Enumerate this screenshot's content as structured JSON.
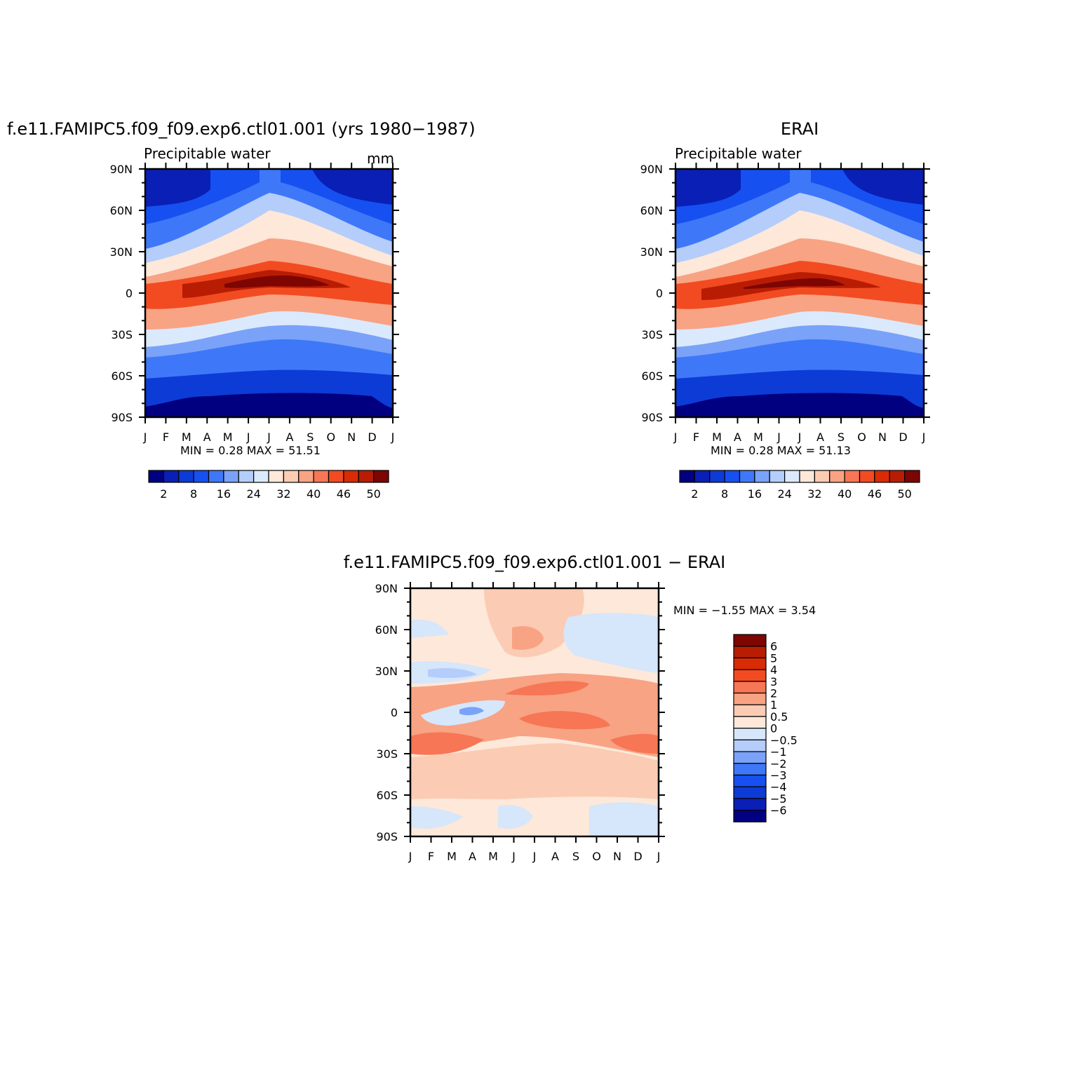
{
  "chart_data": [
    {
      "type": "heatmap",
      "title": "f.e11.FAMIPC5.f09_f09.exp6.ctl01.001 (yrs 1980−1987)",
      "subtitle": "Precipitable water",
      "units": "mm",
      "x_tick_labels": [
        "J",
        "F",
        "M",
        "A",
        "M",
        "J",
        "J",
        "A",
        "S",
        "O",
        "N",
        "D",
        "J"
      ],
      "y_tick_labels": [
        "90N",
        "60N",
        "30N",
        "0",
        "30S",
        "60S",
        "90S"
      ],
      "y_values": [
        90,
        60,
        30,
        0,
        -30,
        -60,
        -90
      ],
      "min_label": "MIN =",
      "max_label": "MAX =",
      "min": "0.28",
      "max": "51.51",
      "colorbar_levels": [
        2,
        8,
        16,
        24,
        32,
        40,
        46,
        50
      ],
      "colorbar_labels": [
        "2",
        "8",
        "16",
        "24",
        "32",
        "40",
        "46",
        "50"
      ],
      "colors": [
        "#000080",
        "#0a1fb5",
        "#0d3bd6",
        "#1650f0",
        "#3e78f8",
        "#7aa2f8",
        "#b4cdfb",
        "#dbe9fc",
        "#fde8d9",
        "#fbcbb3",
        "#f8a383",
        "#f77655",
        "#f24b21",
        "#d92b06",
        "#b81d04",
        "#7d0502"
      ]
    },
    {
      "type": "heatmap",
      "title": "ERAI",
      "subtitle": "Precipitable water",
      "x_tick_labels": [
        "J",
        "F",
        "M",
        "A",
        "M",
        "J",
        "J",
        "A",
        "S",
        "O",
        "N",
        "D",
        "J"
      ],
      "y_tick_labels": [
        "90N",
        "60N",
        "30N",
        "0",
        "30S",
        "60S",
        "90S"
      ],
      "y_values": [
        90,
        60,
        30,
        0,
        -30,
        -60,
        -90
      ],
      "min_label": "MIN =",
      "max_label": "MAX =",
      "min": "0.28",
      "max": "51.13",
      "colorbar_levels": [
        2,
        8,
        16,
        24,
        32,
        40,
        46,
        50
      ],
      "colorbar_labels": [
        "2",
        "8",
        "16",
        "24",
        "32",
        "40",
        "46",
        "50"
      ],
      "colors": [
        "#000080",
        "#0a1fb5",
        "#0d3bd6",
        "#1650f0",
        "#3e78f8",
        "#7aa2f8",
        "#b4cdfb",
        "#dbe9fc",
        "#fde8d9",
        "#fbcbb3",
        "#f8a383",
        "#f77655",
        "#f24b21",
        "#d92b06",
        "#b81d04",
        "#7d0502"
      ]
    },
    {
      "type": "heatmap",
      "title": "f.e11.FAMIPC5.f09_f09.exp6.ctl01.001 − ERAI",
      "x_tick_labels": [
        "J",
        "F",
        "M",
        "A",
        "M",
        "J",
        "J",
        "A",
        "S",
        "O",
        "N",
        "D",
        "J"
      ],
      "y_tick_labels": [
        "90N",
        "60N",
        "30N",
        "0",
        "30S",
        "60S",
        "90S"
      ],
      "y_values": [
        90,
        60,
        30,
        0,
        -30,
        -60,
        -90
      ],
      "min_label": "MIN =",
      "max_label": "MAX =",
      "min": "−1.55",
      "max": "3.54",
      "colorbar_levels": [
        6,
        5,
        4,
        3,
        2,
        1,
        0.5,
        0,
        -0.5,
        -1,
        -2,
        -3,
        -4,
        -5,
        -6
      ],
      "colorbar_labels": [
        "6",
        "5",
        "4",
        "3",
        "2",
        "1",
        "0.5",
        "0",
        "−0.5",
        "−1",
        "−2",
        "−3",
        "−4",
        "−5",
        "−6"
      ],
      "colors": [
        "#7d0502",
        "#b81d04",
        "#d92b06",
        "#f24b21",
        "#f77655",
        "#f8a383",
        "#fbcbb3",
        "#fde8d9",
        "#d6e6fb",
        "#b4cdfb",
        "#7aa2f8",
        "#3e78f8",
        "#1650f0",
        "#0d3bd6",
        "#0a1fb5",
        "#000080"
      ]
    }
  ]
}
